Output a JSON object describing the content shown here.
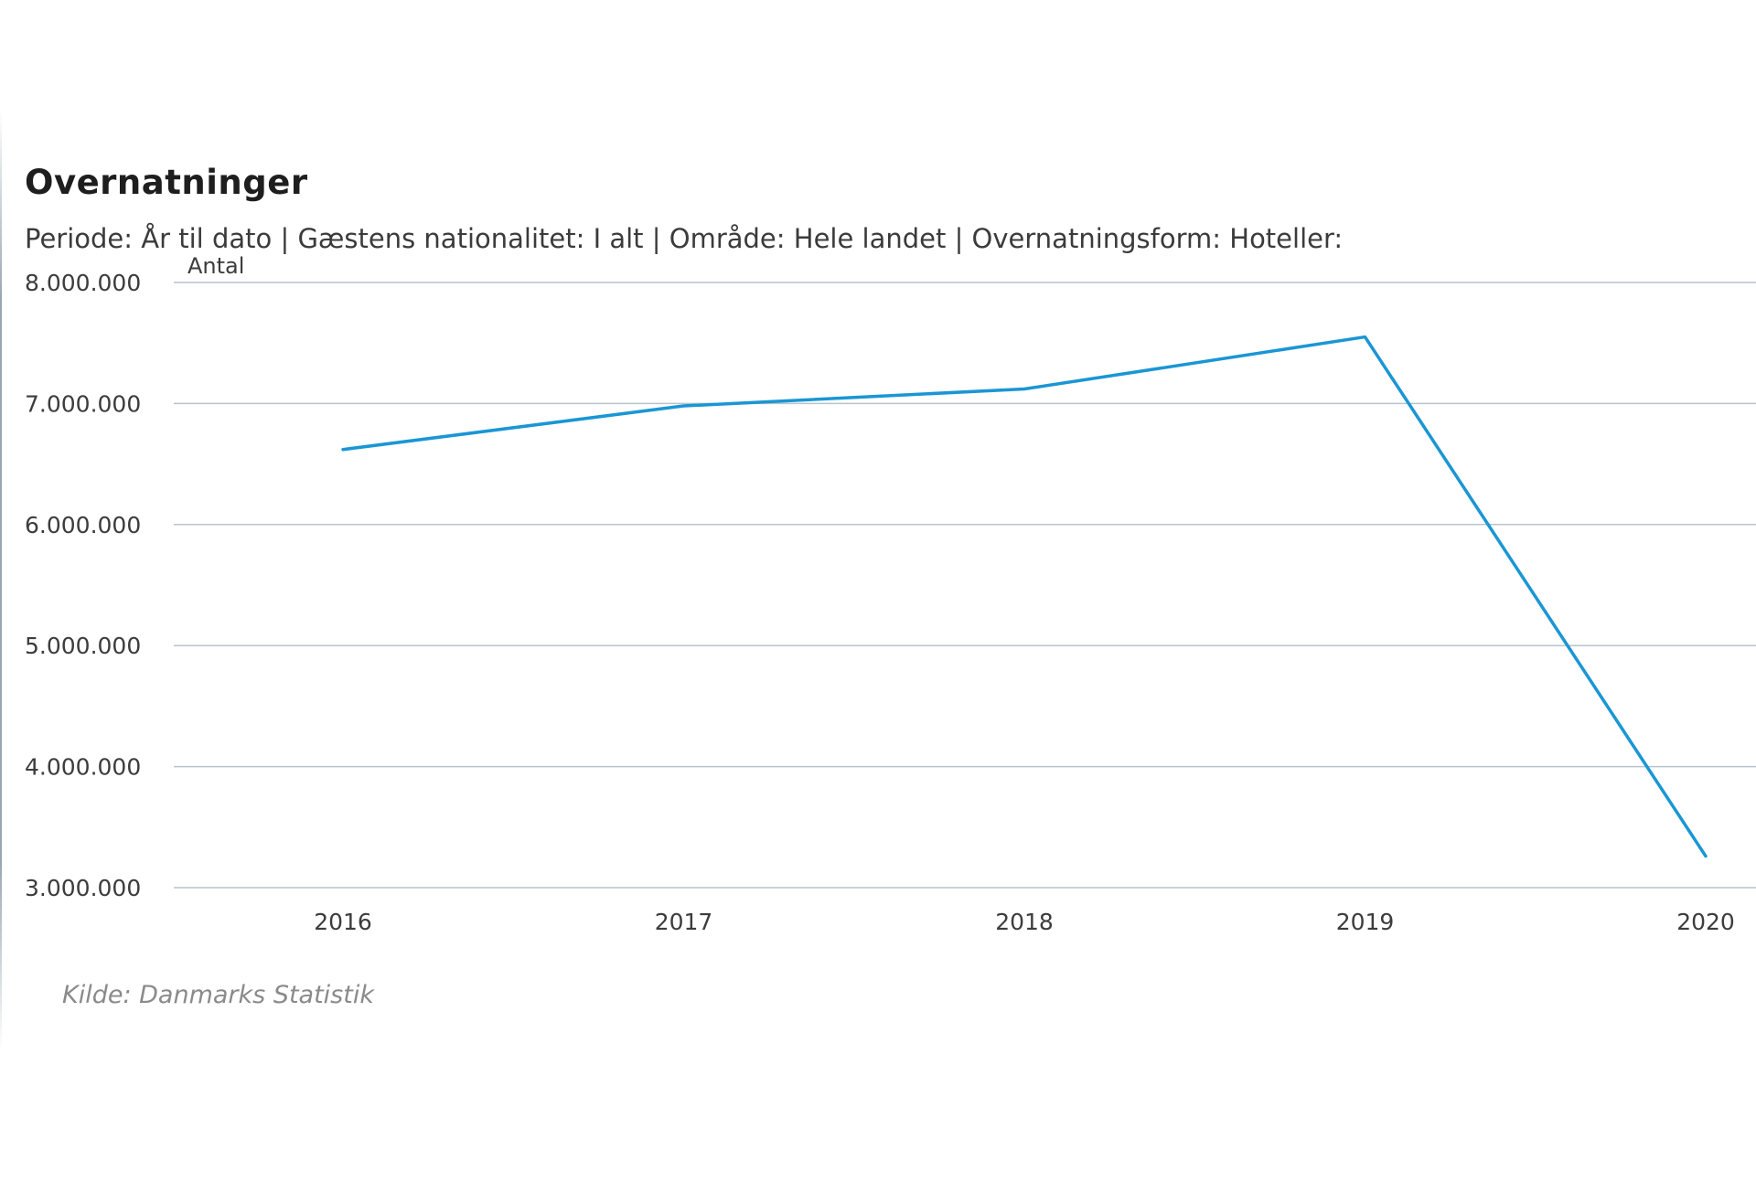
{
  "chart_data": {
    "type": "line",
    "title": "Overnatninger",
    "subtitle": "Periode: År til dato | Gæstens nationalitet: I alt | Område: Hele landet | Overnatningsform: Hoteller:",
    "ylabel": "Antal",
    "xlabel": "",
    "categories": [
      "2016",
      "2017",
      "2018",
      "2019",
      "2020"
    ],
    "series": [
      {
        "values": [
          6620000,
          6980000,
          7120000,
          7550000,
          3260000
        ]
      }
    ],
    "ylim": [
      3000000,
      8000000
    ],
    "yticks": [
      3000000,
      4000000,
      5000000,
      6000000,
      7000000,
      8000000
    ],
    "ytick_labels": [
      "3.000.000",
      "4.000.000",
      "5.000.000",
      "6.000.000",
      "7.000.000",
      "8.000.000"
    ],
    "grid": true,
    "legend": "none",
    "line_color": "#1a96d4",
    "source": "Kilde: Danmarks Statistik"
  }
}
